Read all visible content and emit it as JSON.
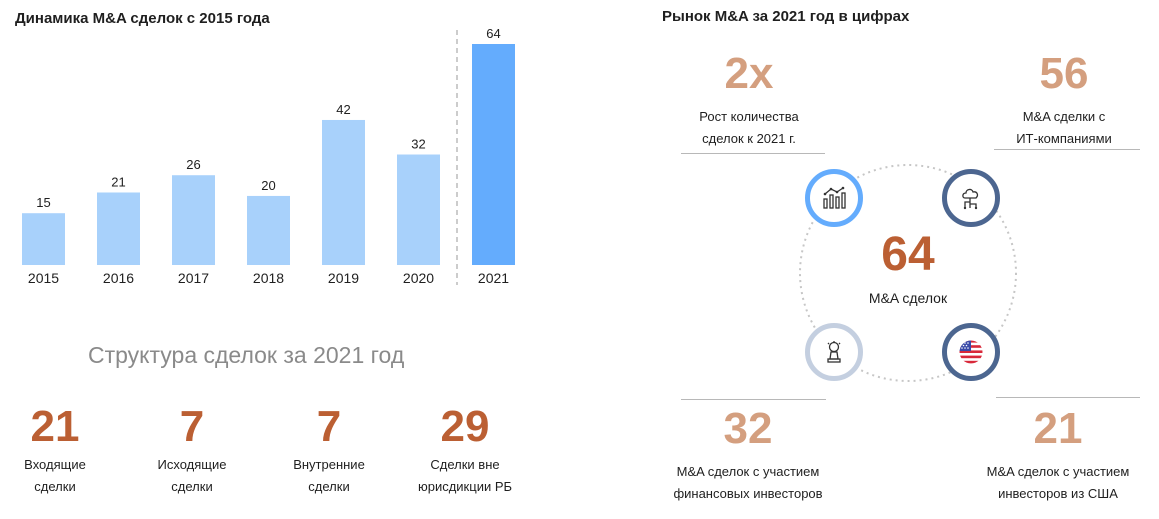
{
  "left_title": "Динамика M&A сделок с 2015 года",
  "right_title": "Рынок M&A за 2021 год в цифрах",
  "chart_data": {
    "type": "bar",
    "title": "Динамика M&A сделок с 2015 года",
    "categories": [
      "2015",
      "2016",
      "2017",
      "2018",
      "2019",
      "2020",
      "2021"
    ],
    "values": [
      15,
      21,
      26,
      20,
      42,
      32,
      64
    ],
    "xlabel": "",
    "ylabel": "",
    "ylim": [
      0,
      70
    ],
    "grid": false,
    "legend": "none",
    "colors": {
      "bar": "#a8d1fb",
      "highlight": "#64acfd",
      "separator": "#9a9a9a"
    },
    "highlight_category": "2021"
  },
  "structure": {
    "title": "Структура сделок за 2021 год",
    "items": [
      {
        "value": "21",
        "label_line1": "Входящие",
        "label_line2": "сделки"
      },
      {
        "value": "7",
        "label_line1": "Исходящие",
        "label_line2": "сделки"
      },
      {
        "value": "7",
        "label_line1": "Внутренние",
        "label_line2": "сделки"
      },
      {
        "value": "29",
        "label_line1": "Сделки вне",
        "label_line2": "юрисдикции РБ"
      }
    ]
  },
  "figures": {
    "top_left": {
      "value": "2x",
      "label_line1": "Рост количества",
      "label_line2": "сделок к 2021 г."
    },
    "top_right": {
      "value": "56",
      "label_line1": "M&A сделки с",
      "label_line2": "ИТ-компаниями"
    },
    "bottom_left": {
      "value": "32",
      "label_line1": "M&A сделок с участием",
      "label_line2": "финансовых инвесторов"
    },
    "bottom_right": {
      "value": "21",
      "label_line1": "M&A сделок с участием",
      "label_line2": "инвесторов из США"
    },
    "center": {
      "value": "64",
      "label": "M&A сделок"
    }
  },
  "icons": {
    "top_left": "bar-chart-icon",
    "top_right": "tech-tree-icon",
    "bottom_left": "chess-piece-icon",
    "bottom_right": "us-flag-icon"
  },
  "colors": {
    "accent_dark": "#bb5f33",
    "accent_light": "#d49f7f",
    "ring_light_blue": "#64acfd",
    "ring_navy": "#4c6690",
    "ring_pale": "#c4cfe0"
  }
}
